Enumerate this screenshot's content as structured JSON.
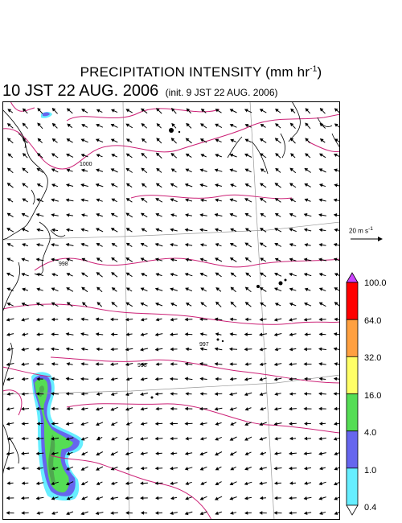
{
  "header": {
    "title": "PRECIPITATION INTENSITY (mm hr",
    "title_unit_exp": "-1",
    "title_close": ")",
    "valid_time": "10 JST 22 AUG. 2006",
    "init_time": "(init. 9 JST 22 AUG. 2006)"
  },
  "reference_vector": {
    "label": "20 m s",
    "unit_exp": "-1"
  },
  "pressure_labels": [
    "1000",
    "998",
    "998",
    "997"
  ],
  "colorbar": {
    "labels": [
      "100.0",
      "64.0",
      "32.0",
      "16.0",
      "4.0",
      "1.0",
      "0.4"
    ],
    "colors": [
      "#ff0000",
      "#ffa040",
      "#ffff66",
      "#55dd55",
      "#6666ee",
      "#66eeff"
    ],
    "over_color": "#cc44ff",
    "under_color": "#ffffff"
  },
  "colors": {
    "isobar": "#cc2277",
    "grid": "#999999",
    "coastline": "#000000",
    "wind_arrow": "#000000"
  }
}
